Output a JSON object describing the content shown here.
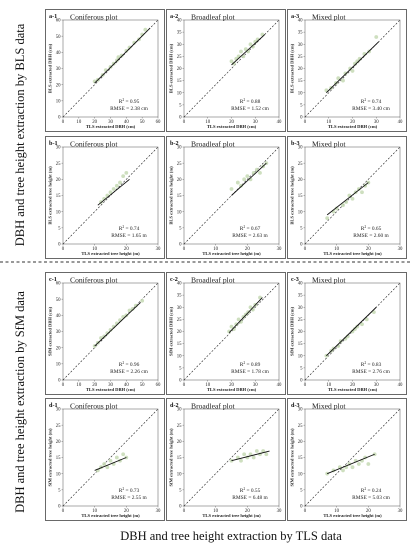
{
  "figure": {
    "side_label_top": "DBH and tree height extraction by BLS data",
    "side_label_bottom": "DBH and tree height extraction by SfM data",
    "bottom_label": "DBH and tree height extraction by TLS data"
  },
  "chart_data": [
    {
      "id": "a-1",
      "type": "scatter",
      "title": "Coniferous plot",
      "xlabel": "TLS extracted DBH (cm)",
      "ylabel": "BLS extracted DBH (cm)",
      "xlim": [
        0,
        60
      ],
      "ylim": [
        0,
        60
      ],
      "xticks": [
        0,
        10,
        20,
        30,
        40,
        50,
        60
      ],
      "yticks": [
        0,
        10,
        20,
        30,
        40,
        50,
        60
      ],
      "x": [
        20,
        22,
        25,
        27,
        30,
        32,
        34,
        35,
        37,
        40,
        42,
        45,
        48,
        50,
        52
      ],
      "y": [
        22,
        23,
        26,
        29,
        31,
        33,
        35,
        37,
        38,
        41,
        43,
        46,
        48,
        51,
        54
      ],
      "fit": [
        [
          20,
          21
        ],
        [
          55,
          55
        ]
      ],
      "r2_label": "R",
      "r2_value": "= 0.95",
      "rmse": "RMSE = 2.38 cm"
    },
    {
      "id": "a-2",
      "type": "scatter",
      "title": "Broadleaf plot",
      "xlabel": "TLS extracted DBH (cm)",
      "ylabel": "BLS extracted DBH (cm)",
      "xlim": [
        0,
        40
      ],
      "ylim": [
        0,
        40
      ],
      "xticks": [
        0,
        10,
        20,
        30,
        40
      ],
      "yticks": [
        0,
        5,
        10,
        15,
        20,
        25,
        30,
        35,
        40
      ],
      "x": [
        20,
        21,
        22,
        23,
        24,
        25,
        26,
        27,
        28,
        29,
        30,
        31,
        33
      ],
      "y": [
        23,
        22,
        24,
        25,
        27,
        25,
        28,
        27,
        30,
        29,
        31,
        32,
        34
      ],
      "fit": [
        [
          20,
          21.5
        ],
        [
          34,
          34
        ]
      ],
      "r2_label": "R",
      "r2_value": "= 0.88",
      "rmse": "RMSE = 1.52 cm"
    },
    {
      "id": "a-3",
      "type": "scatter",
      "title": "Mixed plot",
      "xlabel": "TLS extracted DBH (cm)",
      "ylabel": "BLS extracted DBH (cm)",
      "xlim": [
        0,
        40
      ],
      "ylim": [
        0,
        40
      ],
      "xticks": [
        0,
        10,
        20,
        30,
        40
      ],
      "yticks": [
        0,
        5,
        10,
        15,
        20,
        25,
        30,
        35,
        40
      ],
      "x": [
        9,
        11,
        13,
        14,
        16,
        17,
        19,
        20,
        21,
        22,
        23,
        25,
        27,
        30
      ],
      "y": [
        11,
        12,
        14,
        16,
        15,
        18,
        20,
        19,
        22,
        23,
        24,
        26,
        27,
        33
      ],
      "fit": [
        [
          9,
          10
        ],
        [
          31,
          31
        ]
      ],
      "r2_label": "R",
      "r2_value": "= 0.74",
      "rmse": "RMSE = 3.40 cm"
    },
    {
      "id": "b-1",
      "type": "scatter",
      "title": "Coniferous plot",
      "xlabel": "TLS extracted tree height (m)",
      "ylabel": "BLS extracted tree height (m)",
      "xlim": [
        0,
        30
      ],
      "ylim": [
        0,
        30
      ],
      "xticks": [
        0,
        10,
        20,
        30
      ],
      "yticks": [
        0,
        5,
        10,
        15,
        20,
        25,
        30
      ],
      "x": [
        12,
        13,
        14,
        15,
        16,
        17,
        18,
        19,
        20
      ],
      "y": [
        13,
        14,
        15,
        16,
        17,
        18,
        19,
        21,
        22
      ],
      "fit": [
        [
          11,
          12
        ],
        [
          21,
          20
        ]
      ],
      "r2_label": "R",
      "r2_value": "= 0.74",
      "rmse": "RMSE = 1.65 m"
    },
    {
      "id": "b-2",
      "type": "scatter",
      "title": "Broadleaf plot",
      "xlabel": "TLS extracted tree height (m)",
      "ylabel": "BLS extracted tree height (m)",
      "xlim": [
        0,
        30
      ],
      "ylim": [
        0,
        30
      ],
      "xticks": [
        0,
        10,
        20,
        30
      ],
      "yticks": [
        0,
        5,
        10,
        15,
        20,
        25,
        30
      ],
      "x": [
        15,
        17,
        18,
        19,
        20,
        21,
        22,
        23,
        24,
        25,
        26
      ],
      "y": [
        17,
        19,
        18,
        20,
        21,
        20,
        22,
        23,
        22,
        24,
        25
      ],
      "fit": [
        [
          15,
          15
        ],
        [
          26,
          25
        ]
      ],
      "r2_label": "R",
      "r2_value": "= 0.67",
      "rmse": "RMSE = 2.63 m"
    },
    {
      "id": "b-3",
      "type": "scatter",
      "title": "Mixed plot",
      "xlabel": "TLS extracted tree height (m)",
      "ylabel": "BLS extracted tree height (m)",
      "xlim": [
        0,
        30
      ],
      "ylim": [
        0,
        30
      ],
      "xticks": [
        0,
        10,
        20,
        30
      ],
      "yticks": [
        0,
        5,
        10,
        15,
        20,
        25,
        30
      ],
      "x": [
        7,
        9,
        10,
        12,
        13,
        14,
        15,
        16,
        17,
        18,
        19,
        20
      ],
      "y": [
        8,
        10,
        11,
        12,
        13,
        15,
        14,
        16,
        17,
        16,
        18,
        19
      ],
      "fit": [
        [
          7,
          9
        ],
        [
          20,
          19
        ]
      ],
      "r2_label": "R",
      "r2_value": "= 0.65",
      "rmse": "RMSE = 2.60 m"
    },
    {
      "id": "c-1",
      "type": "scatter",
      "title": "Coniferous plot",
      "xlabel": "TLS extracted DBH (cm)",
      "ylabel": "SfM extracted DBH (cm)",
      "xlim": [
        0,
        60
      ],
      "ylim": [
        0,
        60
      ],
      "xticks": [
        0,
        10,
        20,
        30,
        40,
        50,
        60
      ],
      "yticks": [
        0,
        10,
        20,
        30,
        40,
        50,
        60
      ],
      "x": [
        20,
        22,
        24,
        26,
        28,
        30,
        32,
        34,
        36,
        38,
        40,
        42,
        44,
        46,
        50
      ],
      "y": [
        21,
        23,
        26,
        27,
        29,
        31,
        33,
        35,
        37,
        39,
        40,
        43,
        44,
        46,
        49
      ],
      "fit": [
        [
          20,
          21
        ],
        [
          49,
          48
        ]
      ],
      "r2_label": "R",
      "r2_value": "= 0.96",
      "rmse": "RMSE = 2.26 cm"
    },
    {
      "id": "c-2",
      "type": "scatter",
      "title": "Broadleaf plot",
      "xlabel": "TLS extracted DBH (cm)",
      "ylabel": "SfM extracted DBH (cm)",
      "xlim": [
        0,
        40
      ],
      "ylim": [
        0,
        40
      ],
      "xticks": [
        0,
        10,
        20,
        30,
        40
      ],
      "yticks": [
        0,
        5,
        10,
        15,
        20,
        25,
        30,
        35,
        40
      ],
      "x": [
        19,
        20,
        21,
        22,
        23,
        24,
        25,
        26,
        27,
        28,
        29,
        30,
        32
      ],
      "y": [
        20,
        22,
        21,
        23,
        25,
        24,
        26,
        27,
        28,
        30,
        29,
        31,
        34
      ],
      "fit": [
        [
          19,
          19.5
        ],
        [
          33,
          34
        ]
      ],
      "r2_label": "R",
      "r2_value": "= 0.89",
      "rmse": "RMSE = 1.78 cm"
    },
    {
      "id": "c-3",
      "type": "scatter",
      "title": "Mixed plot",
      "xlabel": "TLS extracted DBH (cm)",
      "ylabel": "SfM extracted DBH (cm)",
      "xlim": [
        0,
        40
      ],
      "ylim": [
        0,
        40
      ],
      "xticks": [
        0,
        10,
        20,
        30,
        40
      ],
      "yticks": [
        0,
        5,
        10,
        15,
        20,
        25,
        30,
        35,
        40
      ],
      "x": [
        9,
        11,
        12,
        14,
        15,
        17,
        18,
        20,
        21,
        22,
        24,
        26,
        29
      ],
      "y": [
        10,
        12,
        13,
        14,
        16,
        17,
        18,
        20,
        21,
        22,
        23,
        25,
        28
      ],
      "fit": [
        [
          9,
          10
        ],
        [
          30,
          30
        ]
      ],
      "r2_label": "R",
      "r2_value": "= 0.83",
      "rmse": "RMSE = 2.76 cm"
    },
    {
      "id": "d-1",
      "type": "scatter",
      "title": "Coniferous plot",
      "xlabel": "TLS extracted tree height (m)",
      "ylabel": "SfM extracted tree height (m)",
      "xlim": [
        0,
        30
      ],
      "ylim": [
        0,
        30
      ],
      "xticks": [
        0,
        10,
        20,
        30
      ],
      "yticks": [
        0,
        5,
        10,
        15,
        20,
        25,
        30
      ],
      "x": [
        11,
        12,
        13,
        14,
        15,
        16,
        17,
        18,
        19,
        20
      ],
      "y": [
        11,
        12,
        13,
        12,
        14,
        13,
        15,
        14,
        16,
        15
      ],
      "fit": [
        [
          10,
          11
        ],
        [
          20,
          15
        ]
      ],
      "r2_label": "R",
      "r2_value": "= 0.73",
      "rmse": "RMSE = 2.55 m"
    },
    {
      "id": "d-2",
      "type": "scatter",
      "title": "Broadleaf plot",
      "xlabel": "TLS extracted tree height (m)",
      "ylabel": "SfM extracted tree height (m)",
      "xlim": [
        0,
        30
      ],
      "ylim": [
        0,
        30
      ],
      "xticks": [
        0,
        10,
        20,
        30
      ],
      "yticks": [
        0,
        5,
        10,
        15,
        20,
        25,
        30
      ],
      "x": [
        15,
        17,
        18,
        19,
        20,
        21,
        22,
        23,
        24,
        25,
        26
      ],
      "y": [
        14,
        15,
        14,
        16,
        15,
        16,
        15,
        17,
        16,
        17,
        16
      ],
      "fit": [
        [
          15,
          14
        ],
        [
          27,
          17
        ]
      ],
      "r2_label": "R",
      "r2_value": "= 0.55",
      "rmse": "RMSE = 6.48 m"
    },
    {
      "id": "d-3",
      "type": "scatter",
      "title": "Mixed plot",
      "xlabel": "TLS extracted tree height (m)",
      "ylabel": "SfM extracted tree height (m)",
      "xlim": [
        0,
        30
      ],
      "ylim": [
        0,
        30
      ],
      "xticks": [
        0,
        10,
        20,
        30
      ],
      "yticks": [
        0,
        5,
        10,
        15,
        20,
        25,
        30
      ],
      "x": [
        7,
        9,
        11,
        12,
        13,
        14,
        15,
        16,
        17,
        18,
        19,
        20,
        22
      ],
      "y": [
        10,
        11,
        12,
        11,
        12,
        13,
        12,
        14,
        13,
        14,
        15,
        13,
        16
      ],
      "fit": [
        [
          7,
          10
        ],
        [
          22,
          16
        ]
      ],
      "r2_label": "R",
      "r2_value": "= 0.24",
      "rmse": "RMSE = 5.03 cm"
    }
  ]
}
